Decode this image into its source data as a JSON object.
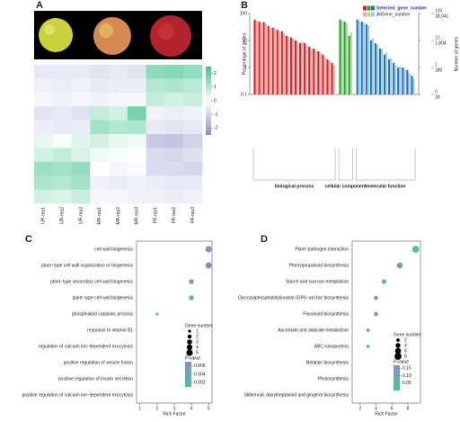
{
  "chart_data": [
    {
      "type": "heatmap",
      "panel": "A",
      "columns": [
        "UR-rep1",
        "UR-rep2",
        "UR-rep3",
        "MR-rep1",
        "MR-rep2",
        "MR-rep3",
        "FR-rep1",
        "FR-rep2",
        "FR-rep3"
      ],
      "values": [
        [
          -0.5,
          -0.5,
          -0.5,
          -0.6,
          -0.5,
          -0.6,
          1.5,
          1.6,
          1.4
        ],
        [
          -0.3,
          -0.4,
          -0.3,
          -0.5,
          -0.4,
          -0.4,
          1.0,
          1.1,
          0.9
        ],
        [
          -0.2,
          -0.3,
          -0.2,
          -0.3,
          -0.2,
          -0.2,
          0.8,
          0.6,
          0.7
        ],
        [
          -0.6,
          -0.5,
          -0.7,
          0.8,
          0.6,
          1.8,
          -0.3,
          -0.4,
          -0.3
        ],
        [
          -0.4,
          -0.5,
          -0.4,
          1.2,
          1.0,
          1.1,
          -0.5,
          -0.6,
          -0.5
        ],
        [
          0.3,
          0.1,
          0.4,
          0.6,
          0.3,
          0.2,
          -1.2,
          -1.3,
          -1.0
        ],
        [
          0.6,
          0.8,
          0.5,
          0.2,
          0.1,
          0.0,
          -0.8,
          -0.9,
          -0.7
        ],
        [
          1.3,
          1.2,
          1.4,
          0.0,
          -0.2,
          -0.1,
          -0.8,
          -0.8,
          -0.9
        ],
        [
          1.1,
          1.0,
          1.2,
          -0.3,
          -0.4,
          -0.3,
          -0.4,
          -0.5,
          -0.5
        ],
        [
          0.6,
          0.5,
          0.7,
          -0.2,
          -0.2,
          -0.3,
          -0.3,
          -0.4,
          -0.3
        ]
      ],
      "zlim": [
        -2.5,
        2.5
      ],
      "zticks": [
        -2,
        -1,
        0,
        1,
        2
      ],
      "colors": [
        "#8b90c8",
        "#ffffff",
        "#3fc38e"
      ]
    },
    {
      "type": "bar",
      "panel": "B",
      "log_y": true,
      "ylabel": "Percentage of genes",
      "ylim": [
        0.1,
        100
      ],
      "yticks": [
        0.1,
        1,
        10,
        100
      ],
      "y2label": "Number of genes",
      "y2lim": [
        18,
        18041
      ],
      "y2ticks": [
        18,
        180,
        {
          "value": 1804,
          "label": "1,804"
        },
        {
          "value": 18041,
          "label": "18,041"
        }
      ],
      "y3lim": [
        0.13,
        130
      ],
      "y3ticks": [
        {
          "value": 0.13,
          "label": "0"
        },
        {
          "value": 1.3,
          "label": "1"
        },
        13,
        130
      ],
      "legend": [
        "Selected_gene_number",
        "AllGene_number"
      ],
      "groups": [
        {
          "name": "biological process",
          "colors": [
            "#d62728",
            "#f4a6a6"
          ],
          "categories": [
            null,
            null,
            null,
            null,
            null,
            null,
            null,
            null,
            null,
            null,
            null,
            null,
            null,
            null,
            null,
            null,
            null,
            null
          ],
          "selected": [
            60,
            50,
            48,
            35,
            30,
            25,
            22,
            15,
            13,
            10,
            8,
            8,
            6,
            5,
            4,
            3,
            2,
            1.5
          ],
          "all": [
            55,
            45,
            42,
            30,
            28,
            22,
            18,
            14,
            12,
            9,
            9,
            7,
            5,
            4.5,
            3.5,
            2.5,
            1.8,
            1.2
          ]
        },
        {
          "name": "cellular component",
          "colors": [
            "#2ca02c",
            "#a6dba0"
          ],
          "categories": [
            null,
            null,
            null
          ],
          "selected": [
            60,
            50,
            15
          ],
          "all": [
            55,
            45,
            20
          ]
        },
        {
          "name": "molecular function",
          "colors": [
            "#1f77b4",
            "#a6c8e8"
          ],
          "categories": [
            null,
            null,
            null,
            null,
            null,
            null,
            null,
            null,
            null,
            null,
            null,
            null,
            null
          ],
          "selected": [
            60,
            50,
            40,
            10,
            8,
            5,
            3,
            2,
            1.5,
            1,
            1,
            0.8,
            0.5
          ],
          "all": [
            55,
            45,
            35,
            12,
            7,
            5,
            3.5,
            2.2,
            1.2,
            1.1,
            0.9,
            0.6,
            0.4
          ]
        }
      ]
    },
    {
      "type": "scatter",
      "panel": "C",
      "categories": [
        "cell wall biogenesis",
        "plant−type cell wall organization or biogenesis",
        "plant−type secondary cell wall biogenesis",
        "plant−type cell wall biogenesis",
        "phospholipid catabolic process",
        "response to vitamin B1",
        "regulation of calcium ion−dependent exocytosis",
        "positive regulation of vesicle fusion",
        "positive regulation of insulin secretion",
        "positive regulation of calcium ion−dependent exocytosis"
      ],
      "values": [
        5,
        5,
        4,
        4,
        2,
        null,
        null,
        null,
        null,
        null
      ],
      "sizes": [
        5,
        5,
        3,
        3,
        1,
        null,
        null,
        null,
        null,
        null
      ],
      "p_values": [
        0.0065,
        0.0065,
        0.005,
        0.002,
        0.001,
        null,
        null,
        null,
        null,
        null
      ],
      "xlabel": "Rich Factor",
      "xlim": [
        0.8,
        5.2
      ],
      "xticks": [
        1,
        2,
        3,
        4,
        5
      ],
      "size_title": "Gene number",
      "size_ticks": [
        1,
        2,
        3,
        4,
        5
      ],
      "color_title": "P-value",
      "clim": [
        0.001,
        0.007
      ],
      "cticks": [
        0.002,
        0.004,
        0.006
      ],
      "colors": [
        "#4dc49a",
        "#8c8ccc"
      ]
    },
    {
      "type": "scatter",
      "panel": "D",
      "categories": [
        "Plant−pathogen interaction",
        "Phenylpropanoid biosynthesis",
        "Starch and sucrose metabolism",
        "Glycosylphosphatidylinositol (GPI)−anchor biosynthesis",
        "Flavonoid biosynthesis",
        "Ascorbate and aldarate metabolism",
        "ABC transporters",
        "Betalain biosynthesis",
        "Photosynthesis",
        "Stilbenoid, diarylheptanoid and gingerol biosynthesis"
      ],
      "values": [
        9,
        7,
        5,
        4,
        4,
        3,
        3,
        null,
        null,
        null
      ],
      "sizes": [
        8,
        6,
        4,
        3,
        3,
        2,
        2,
        null,
        null,
        null
      ],
      "p_values": [
        0.01,
        0.12,
        0.05,
        0.13,
        0.14,
        0.15,
        0.05,
        null,
        null,
        null
      ],
      "xlabel": "Rich Factor",
      "xlim": [
        1,
        9.6
      ],
      "xticks": [
        2,
        4,
        6,
        8
      ],
      "size_title": "Gene number",
      "size_ticks": [
        2,
        4,
        6,
        8
      ],
      "color_title": "P-value",
      "clim": [
        0.0,
        0.17
      ],
      "cticks": [
        0.05,
        {
          "value": 0.1,
          "label": "0.10"
        },
        0.15
      ],
      "colors": [
        "#4dc49a",
        "#8c8ccc"
      ]
    }
  ]
}
